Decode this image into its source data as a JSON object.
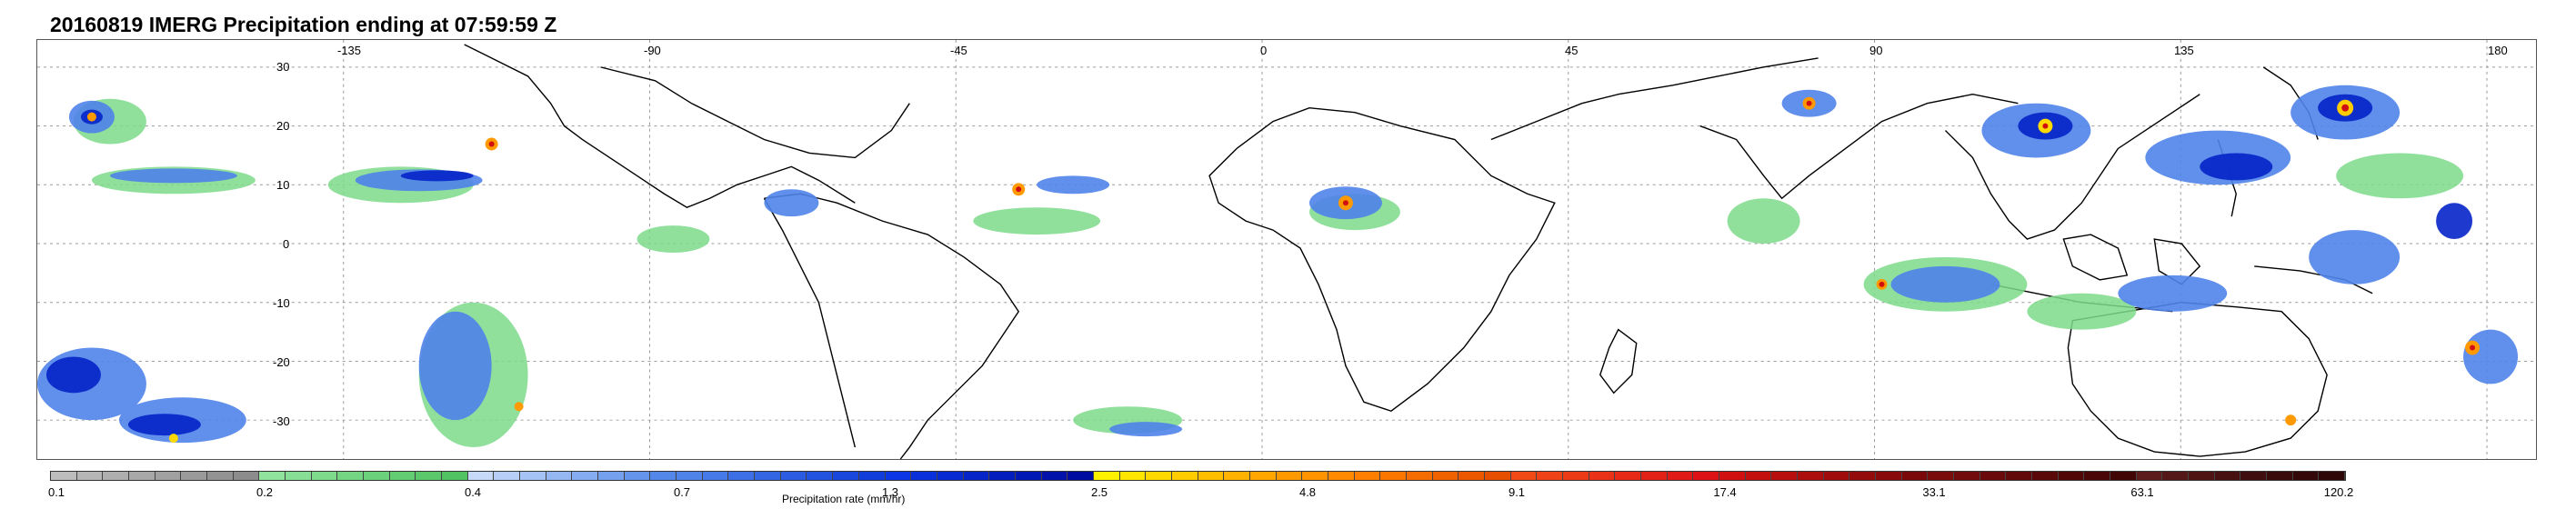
{
  "title": "20160819 IMERG Precipitation ending at 07:59:59 Z",
  "map": {
    "lon_labels": [
      "-135",
      "-90",
      "-45",
      "0",
      "45",
      "90",
      "135",
      "180"
    ],
    "lat_labels": [
      "30",
      "20",
      "10",
      "0",
      "-10",
      "-20",
      "-30"
    ]
  },
  "colorbar": {
    "title": "Precipitation rate (mm/hr)",
    "ticks": [
      "0.1",
      "0.2",
      "0.4",
      "0.7",
      "1.3",
      "2.5",
      "4.8",
      "9.1",
      "17.4",
      "33.1",
      "63.1",
      "120.2"
    ],
    "segments_per_interval": 8,
    "colors": {
      "0.1-0.2": [
        "#bdbdbd",
        "#b6b6b6",
        "#afafaf",
        "#a8a8a8",
        "#a1a1a1",
        "#9a9a9a",
        "#939393",
        "#8c8c8c"
      ],
      "0.2-0.4": [
        "#8fe39c",
        "#86df94",
        "#7ddb8b",
        "#74d683",
        "#6bd27b",
        "#63cd73",
        "#5ac86b",
        "#52c363"
      ],
      "0.4-0.7": [
        "#c7d9f9",
        "#b7cef7",
        "#a6c3f5",
        "#95b8f3",
        "#85acf0",
        "#74a0ee",
        "#6494ec",
        "#5487ea"
      ],
      "0.7-1.3": [
        "#4f83ea",
        "#467ae8",
        "#3d70e6",
        "#3466e4",
        "#2b5ce2",
        "#2252e0",
        "#1a48dd",
        "#113edb"
      ],
      "1.3-2.5": [
        "#0d36e6",
        "#0a30dc",
        "#082ad2",
        "#0624c8",
        "#041ebe",
        "#0218b4",
        "#0012aa",
        "#000ca0"
      ],
      "2.5-4.8": [
        "#fff200",
        "#ffe600",
        "#ffd900",
        "#ffcc00",
        "#ffbf00",
        "#ffb300",
        "#ffa600",
        "#ff9900"
      ],
      "4.8-9.1": [
        "#ff9400",
        "#ff8a00",
        "#ff8000",
        "#fa7600",
        "#f56c00",
        "#f06200",
        "#eb5800",
        "#e64e00"
      ],
      "9.1-17.4": [
        "#f24a17",
        "#ef4217",
        "#ec3a17",
        "#e93217",
        "#e62a17",
        "#e32217",
        "#e01a17",
        "#dd1217"
      ],
      "17.4-33.1": [
        "#d01010",
        "#c40f0f",
        "#b80e0e",
        "#ac0d0d",
        "#a00c0c",
        "#940b0b",
        "#880a0a",
        "#7c0909"
      ],
      "33.1-63.1": [
        "#7a0c0c",
        "#720b0b",
        "#6a0a0a",
        "#620909",
        "#5a0808",
        "#520707",
        "#4a0606",
        "#420505"
      ],
      "63.1-120.2": [
        "#5c1c1c",
        "#551818",
        "#4e1414",
        "#471111",
        "#400e0e",
        "#3a0b0b",
        "#340808",
        "#2e0606"
      ]
    }
  }
}
